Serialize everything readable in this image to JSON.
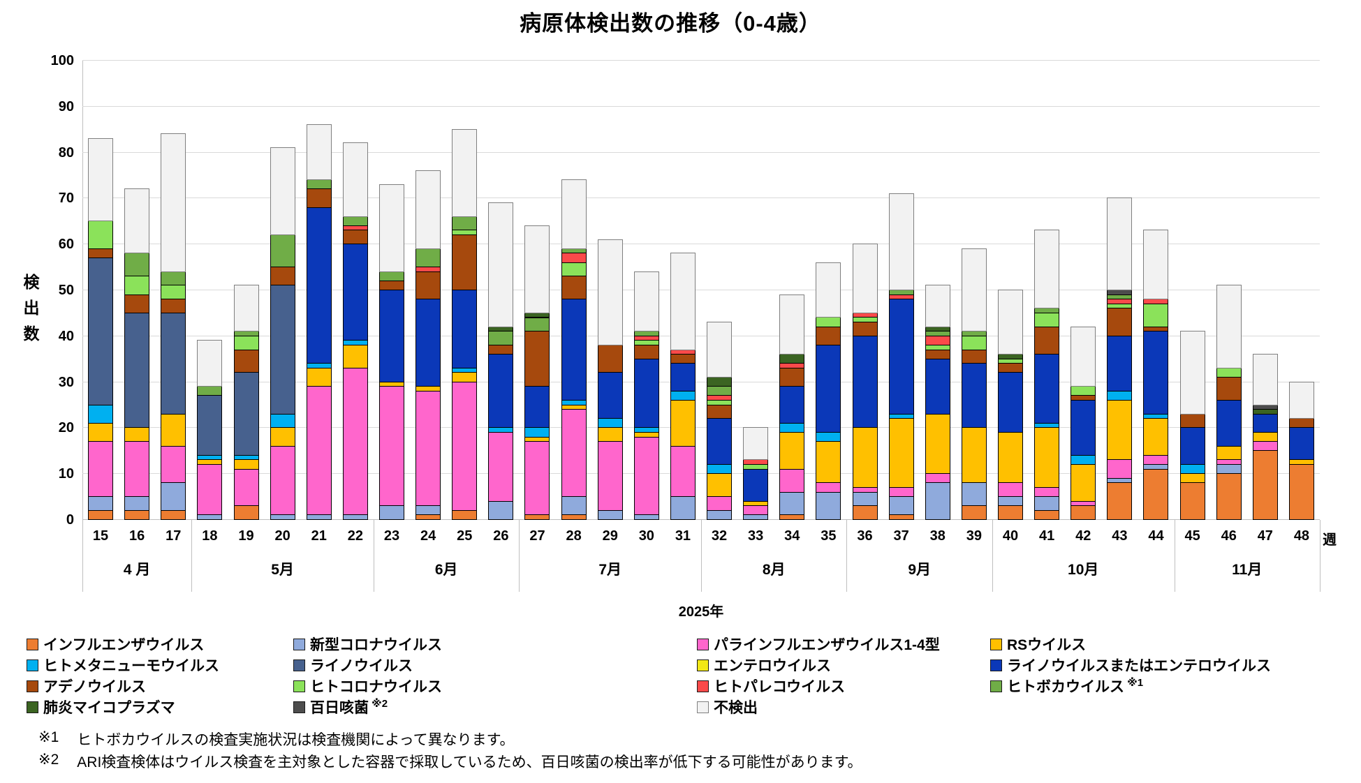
{
  "title": "病原体検出数の推移（0-4歳）",
  "y_axis": {
    "title": "検出数",
    "min": 0,
    "max": 100,
    "step": 10
  },
  "x_axis": {
    "unit_label": "週",
    "year_label": "2025年",
    "months": [
      {
        "label": "4 月",
        "weeks": [
          15,
          16,
          17
        ]
      },
      {
        "label": "5月",
        "weeks": [
          18,
          19,
          20,
          21,
          22
        ]
      },
      {
        "label": "6月",
        "weeks": [
          23,
          24,
          25,
          26
        ]
      },
      {
        "label": "7月",
        "weeks": [
          27,
          28,
          29,
          30,
          31
        ]
      },
      {
        "label": "8月",
        "weeks": [
          32,
          33,
          34,
          35
        ]
      },
      {
        "label": "9月",
        "weeks": [
          36,
          37,
          38,
          39
        ]
      },
      {
        "label": "10月",
        "weeks": [
          40,
          41,
          42,
          43,
          44
        ]
      },
      {
        "label": "11月",
        "weeks": [
          45,
          46,
          47,
          48
        ]
      }
    ]
  },
  "chart_data": {
    "type": "bar",
    "stacked": true,
    "title": "病原体検出数の推移（0-4歳）",
    "xlabel": "週",
    "ylabel": "検出数",
    "ylim": [
      0,
      100
    ],
    "grid": true,
    "legend_position": "bottom",
    "x": [
      15,
      16,
      17,
      18,
      19,
      20,
      21,
      22,
      23,
      24,
      25,
      26,
      27,
      28,
      29,
      30,
      31,
      32,
      33,
      34,
      35,
      36,
      37,
      38,
      39,
      40,
      41,
      42,
      43,
      44,
      45,
      46,
      47,
      48
    ],
    "series": [
      {
        "key": "influenza",
        "name": "インフルエンザウイルス",
        "color": "#ED7D31",
        "border": "#000000",
        "sup": "",
        "values": [
          2,
          2,
          2,
          0,
          3,
          0,
          0,
          0,
          0,
          1,
          2,
          0,
          1,
          1,
          0,
          0,
          0,
          0,
          0,
          1,
          0,
          3,
          1,
          0,
          3,
          3,
          2,
          3,
          8,
          11,
          8,
          10,
          15,
          12
        ]
      },
      {
        "key": "covid19",
        "name": "新型コロナウイルス",
        "color": "#8FAADC",
        "border": "#000000",
        "sup": "",
        "values": [
          3,
          3,
          6,
          1,
          0,
          1,
          1,
          1,
          3,
          2,
          0,
          4,
          0,
          4,
          2,
          1,
          5,
          2,
          1,
          5,
          6,
          3,
          4,
          8,
          5,
          2,
          3,
          0,
          1,
          1,
          0,
          2,
          0,
          0
        ]
      },
      {
        "key": "parainfluenza",
        "name": "パラインフルエンザウイルス1-4型",
        "color": "#FF66CC",
        "border": "#000000",
        "sup": "",
        "values": [
          12,
          12,
          8,
          11,
          8,
          15,
          28,
          32,
          26,
          25,
          28,
          15,
          16,
          19,
          15,
          17,
          11,
          3,
          2,
          5,
          2,
          1,
          2,
          2,
          0,
          3,
          2,
          1,
          4,
          2,
          0,
          1,
          2,
          0
        ]
      },
      {
        "key": "rsv",
        "name": "RSウイルス",
        "color": "#FFC000",
        "border": "#000000",
        "sup": "",
        "values": [
          4,
          3,
          7,
          1,
          2,
          4,
          4,
          5,
          1,
          1,
          2,
          0,
          1,
          1,
          3,
          1,
          10,
          5,
          1,
          8,
          9,
          13,
          15,
          13,
          12,
          11,
          13,
          8,
          13,
          8,
          2,
          3,
          2,
          1
        ]
      },
      {
        "key": "hmpv",
        "name": "ヒトメタニューモウイルス",
        "color": "#00B0F0",
        "border": "#000000",
        "sup": "",
        "values": [
          4,
          0,
          0,
          1,
          1,
          3,
          1,
          1,
          0,
          0,
          1,
          1,
          2,
          1,
          2,
          1,
          2,
          2,
          0,
          2,
          2,
          0,
          1,
          0,
          0,
          0,
          1,
          2,
          2,
          1,
          2,
          0,
          0,
          0
        ]
      },
      {
        "key": "rhinovirus",
        "name": "ライノウイルス",
        "color": "#47618E",
        "border": "#000000",
        "sup": "",
        "values": [
          32,
          25,
          22,
          13,
          18,
          28,
          0,
          0,
          0,
          0,
          0,
          0,
          0,
          0,
          0,
          0,
          0,
          0,
          0,
          0,
          0,
          0,
          0,
          0,
          0,
          0,
          0,
          0,
          0,
          0,
          0,
          0,
          0,
          0
        ]
      },
      {
        "key": "enterovirus",
        "name": "エンテロウイルス",
        "color": "#F2E816",
        "border": "#000000",
        "sup": "",
        "values": [
          0,
          0,
          0,
          0,
          0,
          0,
          0,
          0,
          0,
          0,
          0,
          0,
          0,
          0,
          0,
          0,
          0,
          0,
          0,
          0,
          0,
          0,
          0,
          0,
          0,
          0,
          0,
          0,
          0,
          0,
          0,
          0,
          0,
          0
        ]
      },
      {
        "key": "rhino_or_entero",
        "name": "ライノウイルスまたはエンテロウイルス",
        "color": "#0B38B8",
        "border": "#000000",
        "sup": "",
        "values": [
          0,
          0,
          0,
          0,
          0,
          0,
          34,
          21,
          20,
          19,
          17,
          16,
          9,
          22,
          10,
          15,
          6,
          10,
          7,
          8,
          19,
          20,
          25,
          12,
          14,
          13,
          15,
          12,
          12,
          18,
          8,
          10,
          4,
          7
        ]
      },
      {
        "key": "adenovirus",
        "name": "アデノウイルス",
        "color": "#A6490D",
        "border": "#000000",
        "sup": "",
        "values": [
          2,
          4,
          3,
          0,
          5,
          4,
          4,
          3,
          2,
          6,
          12,
          2,
          12,
          5,
          6,
          3,
          2,
          3,
          0,
          4,
          4,
          3,
          0,
          2,
          3,
          2,
          6,
          1,
          6,
          1,
          3,
          5,
          0,
          2
        ]
      },
      {
        "key": "hcov",
        "name": "ヒトコロナウイルス",
        "color": "#8BE25A",
        "border": "#000000",
        "sup": "",
        "values": [
          6,
          4,
          3,
          0,
          3,
          0,
          0,
          0,
          0,
          0,
          1,
          0,
          0,
          3,
          0,
          1,
          0,
          1,
          1,
          0,
          2,
          1,
          0,
          1,
          3,
          1,
          3,
          2,
          1,
          5,
          0,
          2,
          0,
          0
        ]
      },
      {
        "key": "parechovirus",
        "name": "ヒトパレコウイルス",
        "color": "#FB4A4A",
        "border": "#000000",
        "sup": "",
        "values": [
          0,
          0,
          0,
          0,
          0,
          0,
          0,
          1,
          0,
          1,
          0,
          0,
          0,
          2,
          0,
          1,
          1,
          1,
          1,
          1,
          0,
          1,
          1,
          2,
          0,
          0,
          0,
          0,
          1,
          1,
          0,
          0,
          0,
          0
        ]
      },
      {
        "key": "bocavirus",
        "name": "ヒトボカウイルス",
        "color": "#70AD47",
        "border": "#000000",
        "sup": "※1",
        "values": [
          0,
          5,
          3,
          2,
          1,
          7,
          2,
          2,
          2,
          4,
          3,
          3,
          3,
          1,
          0,
          1,
          0,
          2,
          0,
          0,
          0,
          0,
          1,
          1,
          1,
          0,
          1,
          0,
          1,
          0,
          0,
          0,
          0,
          0
        ]
      },
      {
        "key": "mycoplasma",
        "name": "肺炎マイコプラズマ",
        "color": "#3B6422",
        "border": "#000000",
        "sup": "",
        "values": [
          0,
          0,
          0,
          0,
          0,
          0,
          0,
          0,
          0,
          0,
          0,
          1,
          1,
          0,
          0,
          0,
          0,
          2,
          0,
          2,
          0,
          0,
          0,
          1,
          0,
          1,
          0,
          0,
          0,
          0,
          0,
          0,
          1,
          0
        ]
      },
      {
        "key": "pertussis",
        "name": "百日咳菌",
        "color": "#4D4D4D",
        "border": "#000000",
        "sup": "※2",
        "values": [
          0,
          0,
          0,
          0,
          0,
          0,
          0,
          0,
          0,
          0,
          0,
          0,
          0,
          0,
          0,
          0,
          0,
          0,
          0,
          0,
          0,
          0,
          0,
          0,
          0,
          0,
          0,
          0,
          1,
          0,
          0,
          0,
          1,
          0
        ]
      },
      {
        "key": "not_detected",
        "name": "不検出",
        "color": "#F2F2F2",
        "border": "#7F7F7F",
        "sup": "",
        "values": [
          18,
          14,
          30,
          10,
          10,
          19,
          12,
          16,
          19,
          17,
          19,
          27,
          19,
          15,
          23,
          13,
          21,
          12,
          7,
          13,
          12,
          15,
          21,
          9,
          18,
          14,
          17,
          13,
          20,
          15,
          18,
          18,
          11,
          8
        ]
      }
    ],
    "totals": [
      83,
      72,
      84,
      39,
      51,
      81,
      86,
      82,
      73,
      76,
      85,
      69,
      64,
      74,
      61,
      54,
      58,
      43,
      20,
      49,
      56,
      60,
      71,
      51,
      59,
      50,
      63,
      42,
      70,
      63,
      41,
      51,
      36,
      30
    ]
  },
  "footnotes": [
    {
      "mark": "※1",
      "text": "ヒトボカウイルスの検査実施状況は検査機関によって異なります。"
    },
    {
      "mark": "※2",
      "text": "ARI検査検体はウイルス検査を主対象とした容器で採取しているため、百日咳菌の検出率が低下する可能性があります。"
    }
  ]
}
